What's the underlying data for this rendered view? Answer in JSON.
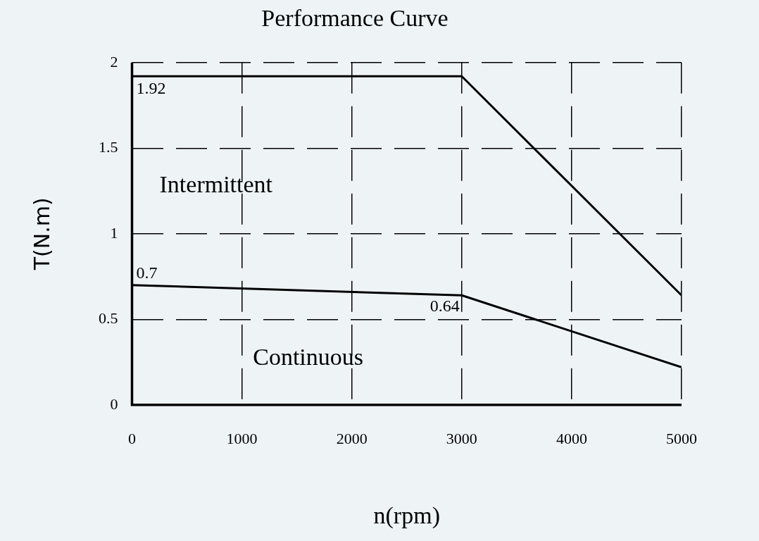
{
  "chart_data": {
    "type": "line",
    "title": "Performance Curve",
    "xlabel": "n(rpm)",
    "ylabel": "T(N.m)",
    "series": [
      {
        "color": "#000000",
        "x": [
          0,
          3000,
          5000
        ],
        "values": [
          1.92,
          1.92,
          0.64
        ],
        "value_labels": [
          "1.92",
          null,
          null
        ]
      },
      {
        "color": "#000000",
        "x": [
          0,
          3000,
          5000
        ],
        "values": [
          0.7,
          0.64,
          0.22
        ],
        "value_labels": [
          "0.7",
          "0.64",
          null
        ]
      }
    ],
    "annotations": [
      "Intermittent",
      "Continuous"
    ],
    "xlim": [
      0,
      5000
    ],
    "xticks": [
      0,
      1000,
      2000,
      3000,
      4000,
      5000
    ],
    "ylim": [
      0,
      2
    ],
    "yticks": [
      0,
      0.5,
      1,
      1.5,
      2
    ],
    "grid": true,
    "legend": false,
    "marker": "none",
    "line_style": "solid"
  }
}
